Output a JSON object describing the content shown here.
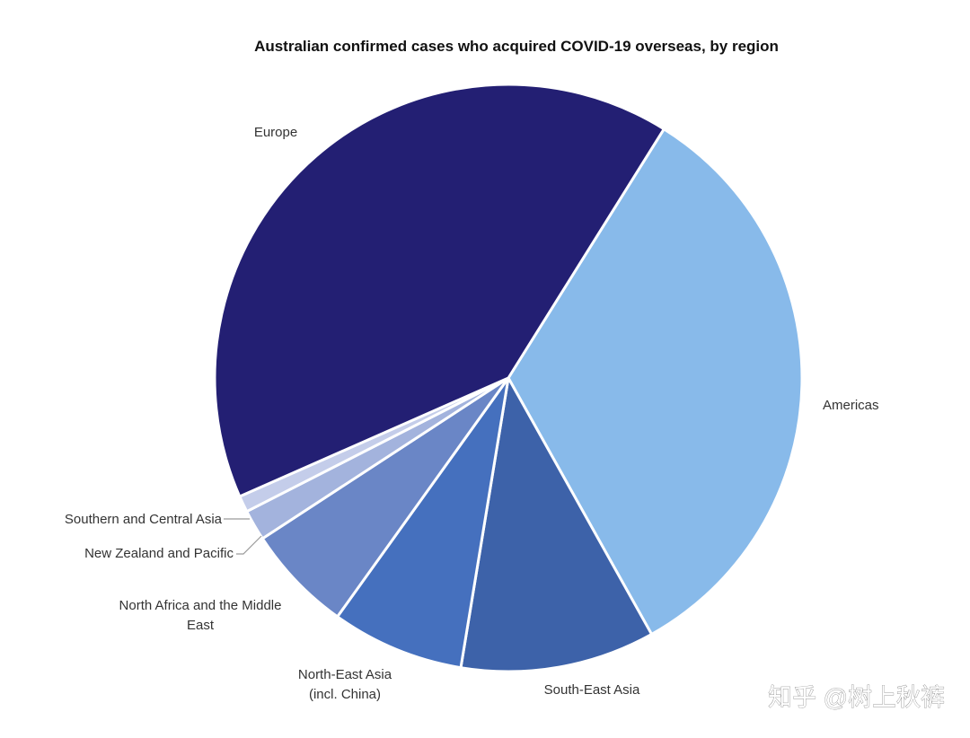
{
  "chart_data": {
    "type": "pie",
    "title": "Australian confirmed cases who acquired COVID-19 overseas, by region",
    "start_angle_deg": 32,
    "direction": "clockwise",
    "legend": "none",
    "slices": [
      {
        "label": "Americas",
        "value": 33.0,
        "color": "#88baea"
      },
      {
        "label": "South-East Asia",
        "value": 10.7,
        "color": "#3d62a9"
      },
      {
        "label": "North-East Asia (incl. China)",
        "label_lines": [
          "North-East Asia",
          "(incl. China)"
        ],
        "value": 7.3,
        "color": "#4570be"
      },
      {
        "label": "North Africa and the Middle East",
        "label_lines": [
          "North Africa and the Middle",
          "East"
        ],
        "value": 5.9,
        "color": "#6a86c6"
      },
      {
        "label": "New Zealand and Pacific",
        "value": 1.7,
        "color": "#a3b3dd"
      },
      {
        "label": "Southern and Central Asia",
        "value": 0.9,
        "color": "#c4cdea"
      },
      {
        "label": "Europe",
        "value": 40.5,
        "color": "#231f73"
      }
    ]
  },
  "watermark": "知乎 @树上秋裤"
}
